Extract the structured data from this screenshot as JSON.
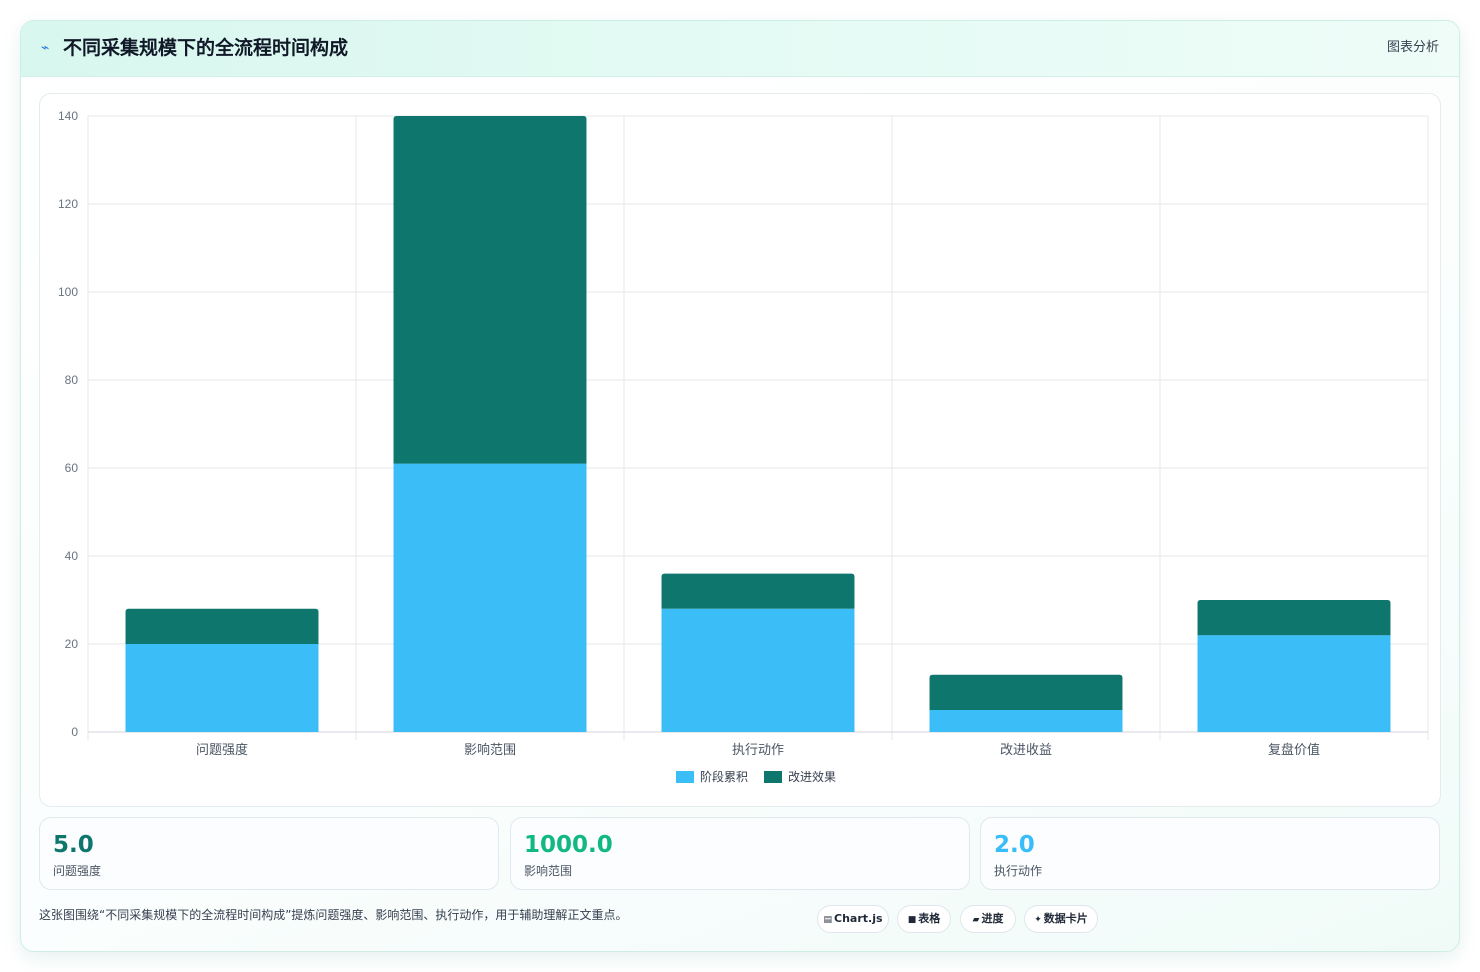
{
  "header": {
    "icon": "line-chart-icon",
    "title": "不同采集规模下的全流程时间构成",
    "right_label": "图表分析"
  },
  "chart_data": {
    "type": "bar",
    "stacked": true,
    "categories": [
      "问题强度",
      "影响范围",
      "执行动作",
      "改进收益",
      "复盘价值"
    ],
    "series": [
      {
        "name": "阶段累积",
        "values": [
          20,
          61,
          28,
          5,
          22
        ],
        "color": "#3bbdf8"
      },
      {
        "name": "改进效果",
        "values": [
          8,
          79,
          8,
          8,
          8
        ],
        "color": "#0f766e"
      }
    ],
    "ylim": [
      0,
      140
    ],
    "yticks": [
      0,
      20,
      40,
      60,
      80,
      100,
      120,
      140
    ],
    "grid": true,
    "legend": "bottom"
  },
  "stats": [
    {
      "value": "5.0",
      "label": "问题强度",
      "color": "#0f766e"
    },
    {
      "value": "1000.0",
      "label": "影响范围",
      "color": "#10b981"
    },
    {
      "value": "2.0",
      "label": "执行动作",
      "color": "#38bdf8"
    }
  ],
  "note": "这张图围绕“不同采集规模下的全流程时间构成”提炼问题强度、影响范围、执行动作，用于辅助理解正文重点。",
  "tags": [
    {
      "icon": "chart-icon",
      "glyph": "▤",
      "label": "Chart.js"
    },
    {
      "icon": "table-icon",
      "glyph": "■",
      "label": "表格"
    },
    {
      "icon": "progress-icon",
      "glyph": "▰",
      "label": "进度"
    },
    {
      "icon": "sparkle-icon",
      "glyph": "✦",
      "label": "数据卡片"
    }
  ]
}
